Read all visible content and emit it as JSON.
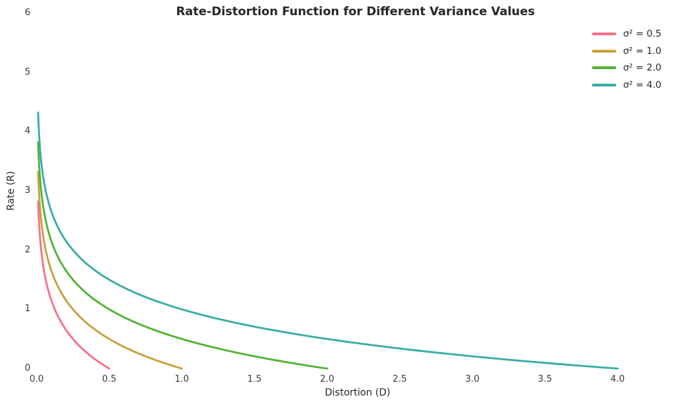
{
  "title": "Rate-Distortion Function for Different Variance Values",
  "axes": {
    "xlabel": "Distortion (D)",
    "ylabel": "Rate (R)",
    "x_ticks": [
      {
        "value": 0.0,
        "label": "0.0"
      },
      {
        "value": 0.5,
        "label": "0.5"
      },
      {
        "value": 1.0,
        "label": "1.0"
      },
      {
        "value": 1.5,
        "label": "1.5"
      },
      {
        "value": 2.0,
        "label": "2.0"
      },
      {
        "value": 2.5,
        "label": "2.5"
      },
      {
        "value": 3.0,
        "label": "3.0"
      },
      {
        "value": 3.5,
        "label": "3.5"
      },
      {
        "value": 4.0,
        "label": "4.0"
      }
    ],
    "y_ticks": [
      {
        "value": 0,
        "label": "0"
      },
      {
        "value": 1,
        "label": "1"
      },
      {
        "value": 2,
        "label": "2"
      },
      {
        "value": 3,
        "label": "3"
      },
      {
        "value": 4,
        "label": "4"
      },
      {
        "value": 5,
        "label": "5"
      },
      {
        "value": 6,
        "label": "6"
      }
    ]
  },
  "legend": {
    "position": "upper right",
    "items": [
      {
        "label": "σ² = 0.5",
        "color": "#f77189"
      },
      {
        "label": "σ² = 1.0",
        "color": "#c7a03c"
      },
      {
        "label": "σ² = 2.0",
        "color": "#52b336"
      },
      {
        "label": "σ² = 4.0",
        "color": "#38ada6"
      }
    ]
  },
  "chart_data": {
    "type": "line",
    "title": "Rate-Distortion Function for Different Variance Values",
    "xlabel": "Distortion (D)",
    "ylabel": "Rate (R)",
    "xlim": [
      0.0,
      4.0
    ],
    "ylim": [
      0.0,
      6.0
    ],
    "grid": false,
    "background": "#ffffff",
    "legend_position": "upper right",
    "formula": "R(D) = 0.5 * log2(sigma_squared / D), plotted for d_min <= D <= sigma_squared",
    "d_min": 0.01,
    "line_width": 2.8,
    "series": [
      {
        "name": "σ² = 0.5",
        "sigma_squared": 0.5,
        "color": "#f77189",
        "sample_points": {
          "D": [
            0.01,
            0.02,
            0.05,
            0.1,
            0.15,
            0.2,
            0.3,
            0.4,
            0.5
          ],
          "R": [
            2.82,
            2.32,
            1.66,
            1.16,
            0.87,
            0.66,
            0.37,
            0.16,
            0.0
          ]
        }
      },
      {
        "name": "σ² = 1.0",
        "sigma_squared": 1.0,
        "color": "#c7a03c",
        "sample_points": {
          "D": [
            0.01,
            0.05,
            0.1,
            0.2,
            0.3,
            0.5,
            0.7,
            0.85,
            1.0
          ],
          "R": [
            3.32,
            2.16,
            1.66,
            1.16,
            0.87,
            0.5,
            0.26,
            0.12,
            0.0
          ]
        }
      },
      {
        "name": "σ² = 2.0",
        "sigma_squared": 2.0,
        "color": "#52b336",
        "sample_points": {
          "D": [
            0.01,
            0.05,
            0.1,
            0.25,
            0.5,
            0.75,
            1.0,
            1.5,
            2.0
          ],
          "R": [
            3.82,
            2.66,
            2.16,
            1.5,
            1.0,
            0.71,
            0.5,
            0.21,
            0.0
          ]
        }
      },
      {
        "name": "σ² = 4.0",
        "sigma_squared": 4.0,
        "color": "#38ada6",
        "sample_points": {
          "D": [
            0.01,
            0.05,
            0.1,
            0.25,
            0.5,
            1.0,
            2.0,
            3.0,
            4.0
          ],
          "R": [
            4.32,
            3.16,
            2.66,
            2.0,
            1.5,
            1.0,
            0.5,
            0.21,
            0.0
          ]
        }
      }
    ]
  }
}
